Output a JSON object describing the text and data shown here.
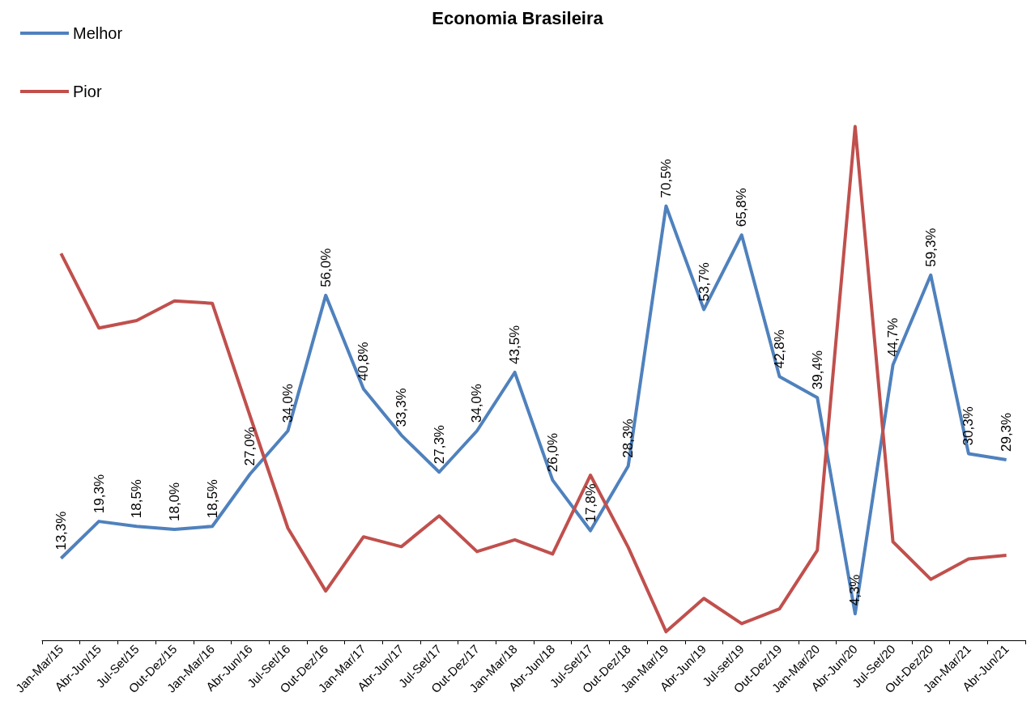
{
  "chart_data": {
    "type": "line",
    "title": "Economia Brasileira",
    "categories": [
      "Jan-Mar/15",
      "Abr-Jun/15",
      "Jul-Set/15",
      "Out-Dez/15",
      "Jan-Mar/16",
      "Abr-Jun/16",
      "Jul-Set/16",
      "Out-Dez/16",
      "Jan-Mar/17",
      "Abr-Jun/17",
      "Jul-Set/17",
      "Out-Dez/17",
      "Jan-Mar/18",
      "Abr-Jun/18",
      "Jul-Set/17",
      "Out-Dez/18",
      "Jan-Mar/19",
      "Abr-Jun/19",
      "Jul-set/19",
      "Out-Dez/19",
      "Jan-Mar/20",
      "Abr-Jun/20",
      "Jul-Set/20",
      "Out-Dez/20",
      "Jan-Mar/21",
      "Abr-Jun/21"
    ],
    "series": [
      {
        "name": "Melhor",
        "color": "#4f81bd",
        "values": [
          13.3,
          19.3,
          18.5,
          18.0,
          18.5,
          27.0,
          34.0,
          56.0,
          40.8,
          33.3,
          27.3,
          34.0,
          43.5,
          26.0,
          17.8,
          28.3,
          70.5,
          53.7,
          65.8,
          42.8,
          39.4,
          4.3,
          44.7,
          59.3,
          30.3,
          29.3
        ],
        "value_labels": [
          "13,3%",
          "19,3%",
          "18,5%",
          "18,0%",
          "18,5%",
          "27,0%",
          "34,0%",
          "56,0%",
          "40,8%",
          "33,3%",
          "27,3%",
          "34,0%",
          "43,5%",
          "26,0%",
          "17,8%",
          "28,3%",
          "70,5%",
          "53,7%",
          "65,8%",
          "42,8%",
          "39,4%",
          "4,3%",
          "44,7%",
          "59,3%",
          "30,3%",
          "29,3%"
        ]
      },
      {
        "name": "Pior",
        "color": "#c0504d",
        "values": [
          62.8,
          50.7,
          51.9,
          55.1,
          54.7,
          36.4,
          18.2,
          8.0,
          16.8,
          15.2,
          20.2,
          14.4,
          16.3,
          14.0,
          26.8,
          15.1,
          1.4,
          6.8,
          2.7,
          5.1,
          14.6,
          83.4,
          16.0,
          9.9,
          13.2,
          13.8
        ]
      }
    ],
    "legend": "top left",
    "grid": false,
    "marker": "none"
  }
}
